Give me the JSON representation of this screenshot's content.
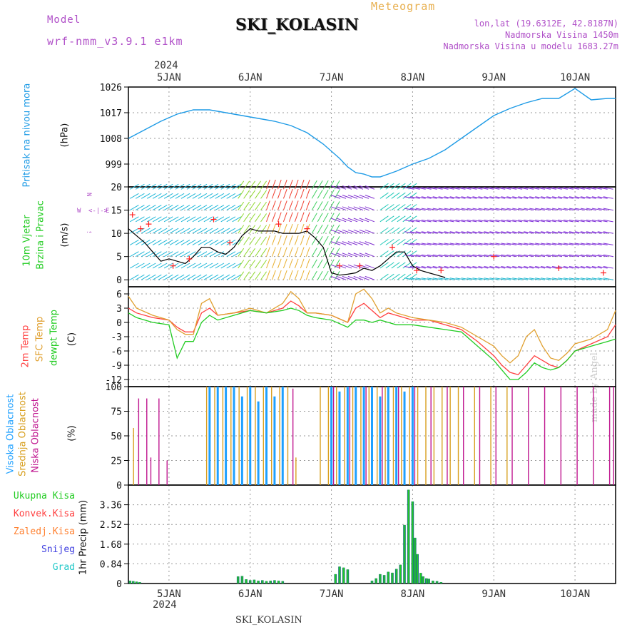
{
  "header": {
    "model_label": "Model",
    "model_name": "wrf-nmm_v3.9.1 e1km",
    "station": "SKI_KOLASIN",
    "chart_kind": "Meteogram",
    "coords": "lon,lat (19.6312E, 42.8187N)",
    "elevation": "Nadmorska Visina 1450m",
    "model_elevation": "Nadmorska Visina u modelu 1683.27m",
    "year_top": "2024",
    "year_bottom": "2024",
    "footer_station": "SKI_KOLASIN",
    "watermark": "made by Angel"
  },
  "colors": {
    "pressure": "#1e9be6",
    "temp2m": "#ff4040",
    "sfc_temp": "#e0a030",
    "dewpt": "#22cc22",
    "wind_speed": "#000000",
    "gust": "#ff2020",
    "cloud_high": "#1ea0ff",
    "cloud_mid": "#d8a020",
    "cloud_low": "#c01890",
    "precip_total": "#22cc22",
    "precip_conv": "#ff4040",
    "precip_frz": "#ff8030",
    "snow": "#4040e0",
    "graupel": "#20c8c8"
  },
  "chart_data": [
    {
      "id": "pressure",
      "type": "line",
      "ylabel": "Pritisak na nivou mora",
      "unit": "(hPa)",
      "yticks": [
        "1026",
        "1017",
        "1008",
        "999"
      ],
      "ylim": [
        991,
        1026
      ],
      "x_days": [
        4.5,
        4.7,
        4.9,
        5.1,
        5.3,
        5.5,
        5.7,
        5.9,
        6.1,
        6.3,
        6.5,
        6.7,
        6.9,
        7.1,
        7.2,
        7.3,
        7.4,
        7.5,
        7.6,
        7.8,
        8.0,
        8.2,
        8.4,
        8.6,
        8.8,
        9.0,
        9.2,
        9.4,
        9.6,
        9.8,
        10.0,
        10.2,
        10.4,
        10.5
      ],
      "values": [
        1008,
        1011,
        1014,
        1016.5,
        1018,
        1018,
        1017,
        1016,
        1015,
        1014,
        1012.5,
        1010,
        1006,
        1001,
        998,
        996,
        995.5,
        994.5,
        994.5,
        996.5,
        999,
        1001,
        1004,
        1008,
        1012,
        1016,
        1018.5,
        1020.5,
        1022,
        1022,
        1025.5,
        1021.5,
        1022,
        1022
      ]
    },
    {
      "id": "wind",
      "type": "line",
      "ylabel_1": "10m Vjetar",
      "ylabel_2": "Brzina i Pravac",
      "unit": "(m/s)",
      "yticks": [
        "20",
        "15",
        "10",
        "5",
        "0"
      ],
      "ylim": [
        -1.5,
        20
      ],
      "compass": [
        "N",
        "<-|->",
        "E",
        "W",
        "S"
      ],
      "x_days": [
        4.5,
        4.6,
        4.7,
        4.8,
        4.9,
        5.0,
        5.1,
        5.2,
        5.3,
        5.4,
        5.5,
        5.6,
        5.7,
        5.8,
        5.9,
        6.0,
        6.1,
        6.2,
        6.3,
        6.4,
        6.5,
        6.6,
        6.7,
        6.8,
        6.9,
        7.0,
        7.1,
        7.2,
        7.3,
        7.4,
        7.5,
        7.6,
        7.7,
        7.8,
        7.9,
        8.0,
        8.1,
        8.2,
        8.3,
        8.4
      ],
      "values": [
        11,
        9.5,
        8,
        6,
        4,
        4.5,
        4,
        3.5,
        5,
        7,
        7,
        6,
        5.5,
        7,
        9.5,
        11,
        10.5,
        10.5,
        10.5,
        10,
        10,
        10,
        10.5,
        9,
        7,
        1.5,
        1,
        1.2,
        1.5,
        2.5,
        2,
        3,
        4.5,
        6,
        6,
        3,
        2,
        1.5,
        1,
        0.5
      ],
      "gust_x_days": [
        4.55,
        4.65,
        4.75,
        5.05,
        5.25,
        5.55,
        5.75,
        6.35,
        6.7,
        7.1,
        7.35,
        7.75,
        8.05,
        8.35,
        9.0,
        9.8,
        10.35
      ],
      "gust_values": [
        14,
        11,
        12,
        3,
        4.5,
        13,
        8,
        12,
        11,
        3,
        3,
        7,
        2,
        2,
        5,
        2.5,
        1.5
      ]
    },
    {
      "id": "temperature",
      "type": "line",
      "ylabel_1": "2m Temp",
      "ylabel_2": "SFC Temp",
      "ylabel_3": "dewpt Temp",
      "unit": "(C)",
      "yticks": [
        "6",
        "3",
        "0",
        "-3",
        "-6",
        "-9",
        "-12"
      ],
      "ylim": [
        -13.5,
        7.5
      ],
      "x_days": [
        4.5,
        4.6,
        4.8,
        5.0,
        5.1,
        5.2,
        5.3,
        5.4,
        5.5,
        5.6,
        5.8,
        6.0,
        6.2,
        6.4,
        6.5,
        6.6,
        6.7,
        6.8,
        7.0,
        7.2,
        7.3,
        7.4,
        7.5,
        7.6,
        7.7,
        7.8,
        8.0,
        8.2,
        8.4,
        8.6,
        8.8,
        9.0,
        9.1,
        9.2,
        9.3,
        9.4,
        9.5,
        9.6,
        9.7,
        9.8,
        9.9,
        10.0,
        10.2,
        10.4,
        10.5
      ],
      "series": [
        {
          "name": "2m Temp",
          "values": [
            3,
            2,
            1,
            0.5,
            -1,
            -2,
            -2,
            2,
            3,
            1.5,
            2,
            2.5,
            2,
            3,
            4.5,
            3.5,
            2,
            2,
            1.5,
            0,
            3,
            4,
            2.5,
            1,
            2,
            1.5,
            0.5,
            0.5,
            -0.5,
            -1.5,
            -4,
            -7,
            -9,
            -10.5,
            -11,
            -9,
            -7,
            -8,
            -9,
            -9.5,
            -8,
            -6,
            -4.5,
            -3,
            -0.5
          ]
        },
        {
          "name": "SFC Temp",
          "values": [
            5.5,
            3,
            1.5,
            0.5,
            -1.5,
            -2.5,
            -2.5,
            4,
            5,
            1.5,
            2,
            3,
            2,
            4,
            6.5,
            5,
            2,
            2,
            1.5,
            0,
            6,
            7,
            5,
            2,
            3,
            2,
            1,
            0.5,
            0,
            -1,
            -3,
            -5,
            -7,
            -8.5,
            -7,
            -3,
            -1.5,
            -5,
            -7.5,
            -8,
            -6.5,
            -4.5,
            -3.5,
            -1.5,
            2.5
          ]
        },
        {
          "name": "dewpt Temp",
          "values": [
            2,
            1,
            0,
            -0.5,
            -7.5,
            -4,
            -4,
            0,
            1.5,
            0.5,
            1.5,
            2.5,
            2,
            2.5,
            3,
            2.5,
            1.5,
            1,
            0.5,
            -1,
            0.5,
            0.5,
            0,
            0.5,
            0,
            -0.5,
            -0.5,
            -1,
            -1.5,
            -2,
            -5,
            -8,
            -10,
            -12,
            -12,
            -10.5,
            -8.5,
            -9.5,
            -10,
            -9.5,
            -8,
            -6,
            -5,
            -4,
            -3.5
          ]
        }
      ]
    },
    {
      "id": "clouds",
      "type": "bar",
      "ylabel_1": "Visoka Oblacnost",
      "ylabel_2": "Srednja Oblacnost",
      "ylabel_3": "Niska Oblacnost",
      "unit": "(%)",
      "yticks": [
        "100",
        "75",
        "50",
        "25",
        "0"
      ],
      "ylim": [
        0,
        100
      ],
      "series": [
        {
          "name": "Visoka Oblacnost",
          "x_days": [
            5.5,
            5.6,
            5.7,
            5.8,
            5.9,
            6.0,
            6.1,
            6.2,
            6.3,
            6.4,
            7.0,
            7.1,
            7.2,
            7.3,
            7.4,
            7.5,
            7.6,
            7.7,
            7.8,
            7.9,
            8.0
          ],
          "values": [
            100,
            100,
            100,
            100,
            90,
            100,
            85,
            100,
            90,
            100,
            100,
            95,
            100,
            100,
            100,
            100,
            90,
            100,
            100,
            95,
            100
          ]
        },
        {
          "name": "Srednja Oblacnost",
          "x_days": [
            4.55,
            5.45,
            5.55,
            5.65,
            5.75,
            5.85,
            5.95,
            6.05,
            6.15,
            6.25,
            6.35,
            6.45,
            6.55,
            6.85,
            6.95,
            7.05,
            7.15,
            7.25,
            7.35,
            7.45,
            7.55,
            7.65,
            7.75,
            7.85,
            7.95,
            8.05,
            8.15,
            8.25,
            8.35,
            8.45,
            8.55,
            8.75,
            8.95,
            9.15
          ],
          "values": [
            58,
            100,
            100,
            100,
            100,
            100,
            100,
            100,
            100,
            100,
            100,
            100,
            28,
            100,
            100,
            100,
            100,
            100,
            100,
            100,
            100,
            100,
            100,
            100,
            100,
            100,
            100,
            100,
            100,
            100,
            100,
            100,
            100,
            100
          ]
        },
        {
          "name": "Niska Oblacnost",
          "x_days": [
            4.6,
            4.7,
            4.75,
            4.85,
            4.95,
            6.5,
            7.0,
            7.2,
            7.4,
            7.6,
            7.8,
            8.0,
            8.2,
            8.4,
            8.6,
            8.8,
            9.0,
            9.2,
            9.4,
            9.6,
            9.8,
            10.0,
            10.2,
            10.4,
            10.45
          ],
          "values": [
            88,
            88,
            28,
            88,
            25,
            98,
            100,
            100,
            100,
            100,
            100,
            100,
            100,
            100,
            100,
            100,
            100,
            100,
            100,
            100,
            100,
            100,
            100,
            100,
            100
          ]
        }
      ]
    },
    {
      "id": "precip",
      "type": "bar",
      "legend": [
        "Ukupna Kisa",
        "Konvek.Kisa",
        "Zaledj.Kisa",
        "Snijeg",
        "Grad"
      ],
      "ylabel": "1hr Precip (mm)",
      "yticks": [
        "3.36",
        "2.52",
        "1.68",
        "0.84",
        "0"
      ],
      "ylim": [
        0,
        4.2
      ],
      "x_days": [
        4.52,
        4.56,
        4.6,
        4.64,
        5.85,
        5.9,
        5.95,
        6.0,
        6.05,
        6.1,
        6.15,
        6.2,
        6.25,
        6.3,
        6.35,
        6.4,
        7.05,
        7.1,
        7.15,
        7.2,
        7.5,
        7.55,
        7.6,
        7.65,
        7.7,
        7.75,
        7.8,
        7.85,
        7.9,
        7.95,
        8.0,
        8.03,
        8.06,
        8.1,
        8.13,
        8.17,
        8.2,
        8.25,
        8.3,
        8.35
      ],
      "values": [
        0.12,
        0.1,
        0.08,
        0.06,
        0.3,
        0.32,
        0.18,
        0.14,
        0.16,
        0.12,
        0.14,
        0.1,
        0.12,
        0.14,
        0.12,
        0.1,
        0.4,
        0.72,
        0.68,
        0.6,
        0.12,
        0.22,
        0.4,
        0.36,
        0.5,
        0.46,
        0.62,
        0.8,
        2.5,
        4.0,
        3.5,
        1.95,
        1.25,
        0.45,
        0.3,
        0.22,
        0.2,
        0.12,
        0.1,
        0.06
      ]
    }
  ],
  "time_axis": {
    "day_ticks": [
      5,
      6,
      7,
      8,
      9,
      10
    ],
    "labels": [
      "5JAN",
      "6JAN",
      "7JAN",
      "8JAN",
      "9JAN",
      "10JAN"
    ]
  }
}
